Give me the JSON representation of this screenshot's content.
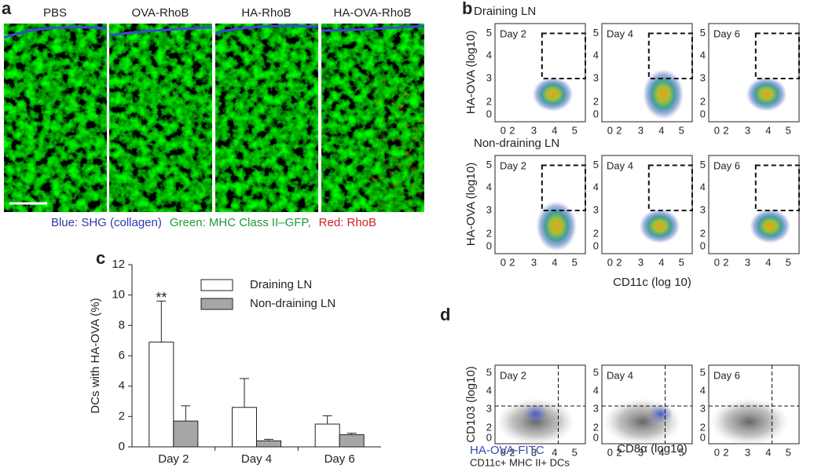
{
  "panel_a": {
    "letter": "a",
    "labels": [
      "PBS",
      "OVA-RhoB",
      "HA-RhoB",
      "HA-OVA-RhoB"
    ],
    "caption_blue": "Blue: SHG (collagen)",
    "caption_green": "Green: MHC Class II–GFP,",
    "caption_red": "Red: RhoB"
  },
  "panel_b": {
    "letter": "b",
    "rows": [
      {
        "title": "Draining LN",
        "days": [
          "Day 2",
          "Day 4",
          "Day 6"
        ]
      },
      {
        "title": "Non-draining LN",
        "days": [
          "Day 2",
          "Day 4",
          "Day 6"
        ]
      }
    ],
    "ylabel": "HA-OVA (log10)",
    "xlabel": "CD11c (log 10)"
  },
  "panel_c": {
    "letter": "c"
  },
  "panel_d": {
    "letter": "d",
    "days": [
      "Day 2",
      "Day 4",
      "Day 6"
    ],
    "ylabel": "CD103 (log10)",
    "xlabel": "CD8α (log10)",
    "legend_1": "HA-OVA-FITC",
    "legend_2": "CD11c+ MHC II+ DCs"
  },
  "flow_ticks": [
    0,
    2,
    3,
    4,
    5
  ],
  "chart_data": {
    "type": "bar",
    "ylabel": "DCs with HA-OVA (%)",
    "categories": [
      "Day 2",
      "Day 4",
      "Day 6"
    ],
    "series": [
      {
        "name": "Draining LN",
        "color": "#ffffff",
        "values": [
          6.9,
          2.6,
          1.5
        ],
        "errors": [
          2.7,
          1.9,
          0.55
        ]
      },
      {
        "name": "Non-draining LN",
        "color": "#a6a6a6",
        "values": [
          1.7,
          0.4,
          0.8
        ],
        "errors": [
          1.0,
          0.1,
          0.1
        ]
      }
    ],
    "ylim": [
      0,
      12
    ],
    "yticks": [
      0,
      2,
      4,
      6,
      8,
      10,
      12
    ],
    "annotation": "**"
  }
}
